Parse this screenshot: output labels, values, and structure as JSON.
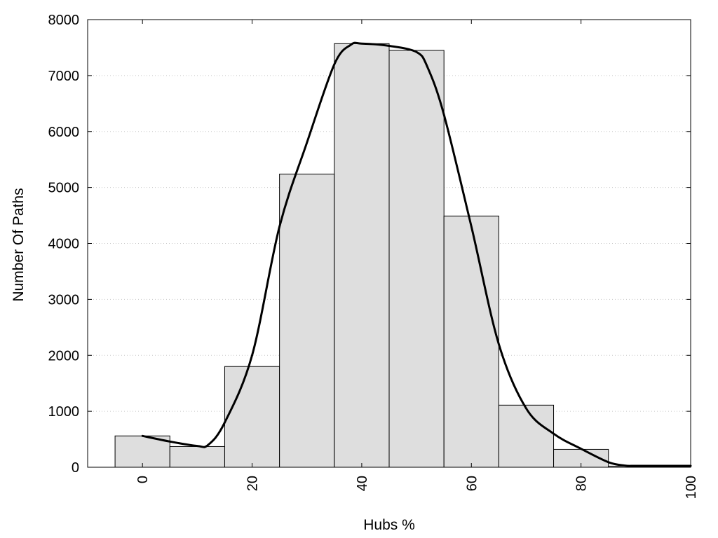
{
  "chart_data": {
    "type": "bar",
    "title": "",
    "xlabel": "Hubs %",
    "ylabel": "Number Of Paths",
    "xlim": [
      -10,
      100
    ],
    "ylim": [
      0,
      8000
    ],
    "x_ticks": [
      0,
      20,
      40,
      60,
      80,
      100
    ],
    "y_ticks": [
      0,
      1000,
      2000,
      3000,
      4000,
      5000,
      6000,
      7000,
      8000
    ],
    "grid": "horizontal-dotted",
    "legend": "none",
    "bin_width": 10,
    "bar_color": "#dedede",
    "bar_stroke": "#000000",
    "bins": [
      {
        "center": 0,
        "value": 560
      },
      {
        "center": 10,
        "value": 370
      },
      {
        "center": 20,
        "value": 1800
      },
      {
        "center": 30,
        "value": 5240
      },
      {
        "center": 40,
        "value": 7570
      },
      {
        "center": 50,
        "value": 7450
      },
      {
        "center": 60,
        "value": 4490
      },
      {
        "center": 70,
        "value": 1110
      },
      {
        "center": 80,
        "value": 320
      },
      {
        "center": 90,
        "value": 20
      }
    ],
    "density_curve": {
      "x": [
        0,
        5,
        10,
        12,
        15,
        20,
        25,
        30,
        35,
        38,
        40,
        45,
        50,
        52,
        55,
        60,
        65,
        70,
        75,
        80,
        85,
        88,
        90,
        95,
        100
      ],
      "y": [
        560,
        460,
        380,
        400,
        800,
        2000,
        4300,
        5800,
        7200,
        7550,
        7570,
        7530,
        7420,
        7150,
        6300,
        4300,
        2200,
        1050,
        600,
        330,
        90,
        30,
        25,
        25,
        25
      ]
    }
  }
}
